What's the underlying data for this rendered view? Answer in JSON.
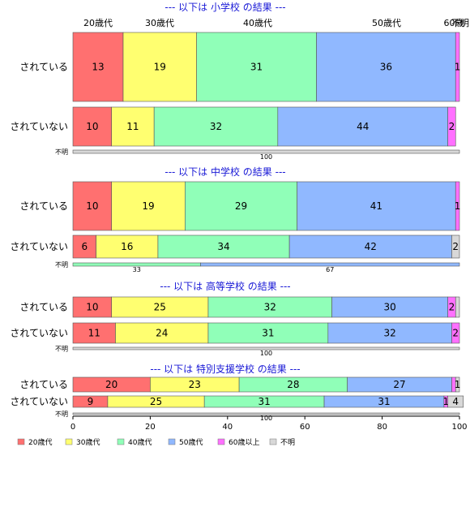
{
  "chart_data": {
    "type": "bar",
    "orientation": "horizontal-stacked",
    "age_categories": [
      "20歳代",
      "30歳代",
      "40歳代",
      "50歳代",
      "60歳以上"
    ],
    "top_labels": [
      "20歳代",
      "30歳代",
      "40歳代",
      "50歳代",
      "60歳",
      "不明"
    ],
    "legend": [
      "20歳代",
      "30歳代",
      "40歳代",
      "50歳代",
      "60歳以上",
      "不明"
    ],
    "colors": [
      "#ff7070",
      "#ffff70",
      "#90ffb8",
      "#90b8ff",
      "#ff70ff",
      "#d8d8d8"
    ],
    "xlim": [
      0,
      100
    ],
    "xticks": [
      "0",
      "20",
      "40",
      "60",
      "80",
      "100"
    ],
    "groups": [
      {
        "title": "--- 以下は 小学校 の結果 ---",
        "rows": [
          {
            "label": "されている",
            "values": [
              13,
              19,
              31,
              36,
              1,
              0
            ],
            "value_labels": [
              "13",
              "19",
              "31",
              "36",
              "1",
              ""
            ]
          },
          {
            "label": "されていない",
            "values": [
              10,
              11,
              32,
              44,
              2,
              0
            ],
            "value_labels": [
              "10",
              "11",
              "32",
              "44",
              "2",
              ""
            ]
          },
          {
            "label": "不明",
            "values": [
              0,
              0,
              0,
              0,
              0,
              100
            ],
            "value_labels": [
              "",
              "",
              "",
              "",
              "",
              "100"
            ]
          }
        ]
      },
      {
        "title": "--- 以下は 中学校 の結果 ---",
        "rows": [
          {
            "label": "されている",
            "values": [
              10,
              19,
              29,
              41,
              1,
              0
            ],
            "value_labels": [
              "10",
              "19",
              "29",
              "41",
              "1",
              ""
            ]
          },
          {
            "label": "されていない",
            "values": [
              6,
              16,
              34,
              42,
              0,
              2
            ],
            "value_labels": [
              "6",
              "16",
              "34",
              "42",
              "",
              "2"
            ]
          },
          {
            "label": "不明",
            "values": [
              0,
              0,
              33,
              67,
              0,
              0
            ],
            "value_labels": [
              "",
              "",
              "33",
              "67",
              "",
              ""
            ]
          }
        ]
      },
      {
        "title": "--- 以下は 高等学校 の結果 ---",
        "rows": [
          {
            "label": "されている",
            "values": [
              10,
              25,
              32,
              30,
              2,
              1
            ],
            "value_labels": [
              "10",
              "25",
              "32",
              "30",
              "2",
              ""
            ]
          },
          {
            "label": "されていない",
            "values": [
              11,
              24,
              31,
              32,
              2,
              0
            ],
            "value_labels": [
              "11",
              "24",
              "31",
              "32",
              "2",
              ""
            ]
          },
          {
            "label": "不明",
            "values": [
              0,
              0,
              0,
              0,
              0,
              100
            ],
            "value_labels": [
              "",
              "",
              "",
              "",
              "",
              "100"
            ]
          }
        ]
      },
      {
        "title": "--- 以下は 特別支援学校 の結果 ---",
        "rows": [
          {
            "label": "されている",
            "values": [
              20,
              23,
              28,
              27,
              1,
              1
            ],
            "value_labels": [
              "20",
              "23",
              "28",
              "27",
              "",
              "1"
            ]
          },
          {
            "label": "されていない",
            "values": [
              9,
              25,
              31,
              31,
              1,
              4
            ],
            "value_labels": [
              "9",
              "25",
              "31",
              "31",
              "1",
              "4"
            ]
          },
          {
            "label": "不明",
            "values": [
              0,
              0,
              0,
              0,
              0,
              100
            ],
            "value_labels": [
              "",
              "",
              "",
              "",
              "",
              "100"
            ]
          }
        ]
      }
    ]
  }
}
